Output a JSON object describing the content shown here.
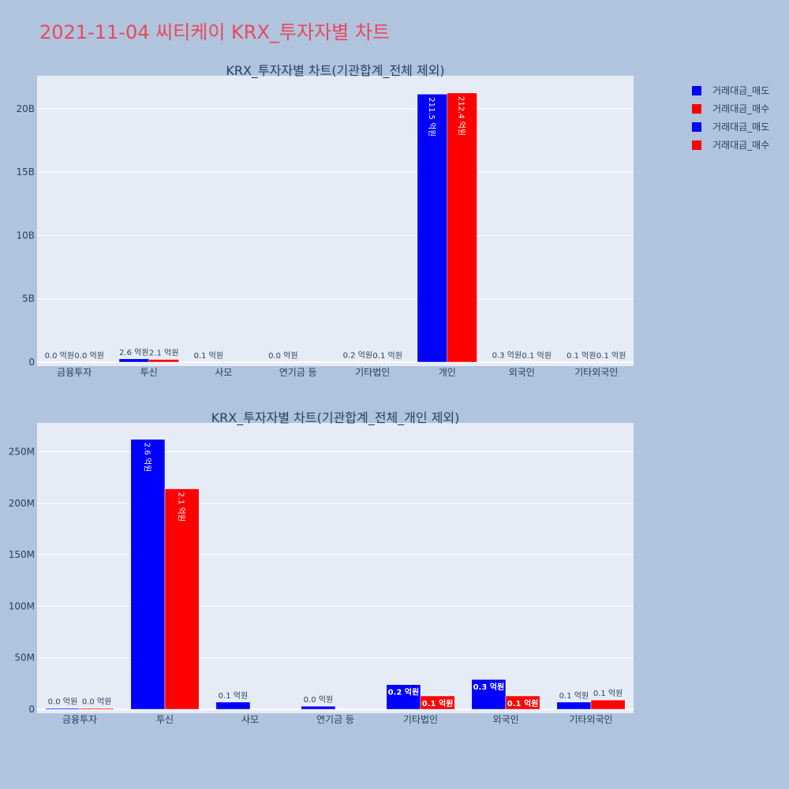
{
  "page": {
    "title": "2021-11-04 씨티케이 KRX_투자자별 차트",
    "title_color": "#e8495b",
    "background": "#b0c4de",
    "plot_background": "#e5ecf6",
    "text_color": "#2a3f5f"
  },
  "legend": {
    "items": [
      {
        "label": "거래대금_매도",
        "color": "#0000ff"
      },
      {
        "label": "거래대금_매수",
        "color": "#ff0000"
      },
      {
        "label": "거래대금_매도",
        "color": "#0000ff"
      },
      {
        "label": "거래대금_매수",
        "color": "#ff0000"
      }
    ],
    "placement": "top-right"
  },
  "chart_data": [
    {
      "type": "bar",
      "title": "KRX_투자자별 차트(기관합계_전체 제외)",
      "categories": [
        "금융투자",
        "투신",
        "사모",
        "연기금 등",
        "기타법인",
        "개인",
        "외국인",
        "기타외국인"
      ],
      "series": [
        {
          "name": "거래대금_매도",
          "color": "#0000ff",
          "values": [
            1000000,
            262000000,
            7000000,
            3000000,
            24000000,
            21150000000,
            29000000,
            7000000
          ],
          "labels": [
            "0.0 억원",
            "2.6 억원",
            "0.1 억원",
            "0.0 억원",
            "0.2 억원",
            "211.5 억원",
            "0.3 억원",
            "0.1 억원"
          ]
        },
        {
          "name": "거래대금_매수",
          "color": "#ff0000",
          "values": [
            1000000,
            214000000,
            0,
            0,
            13000000,
            21240000000,
            13000000,
            9000000
          ],
          "labels": [
            "0.0 억원",
            "2.1 억원",
            "",
            "",
            "0.1 억원",
            "212.4 억원",
            "0.1 억원",
            "0.1 억원"
          ]
        }
      ],
      "ylim": [
        0,
        22600000000
      ],
      "yticks": [
        {
          "value": 0,
          "label": "0"
        },
        {
          "value": 5000000000,
          "label": "5B"
        },
        {
          "value": 10000000000,
          "label": "10B"
        },
        {
          "value": 15000000000,
          "label": "15B"
        },
        {
          "value": 20000000000,
          "label": "20B"
        }
      ],
      "grid": true
    },
    {
      "type": "bar",
      "title": "KRX_투자자별 차트(기관합계_전체_개인 제외)",
      "categories": [
        "금융투자",
        "투신",
        "사모",
        "연기금 등",
        "기타법인",
        "외국인",
        "기타외국인"
      ],
      "series": [
        {
          "name": "거래대금_매도",
          "color": "#0000ff",
          "values": [
            1000000,
            262000000,
            7000000,
            3000000,
            24000000,
            29000000,
            7000000
          ],
          "labels": [
            "0.0 억원",
            "2.6 억원",
            "0.1 억원",
            "0.0 억원",
            "0.2 억원",
            "0.3 억원",
            "0.1 억원"
          ]
        },
        {
          "name": "거래대금_매수",
          "color": "#ff0000",
          "values": [
            1000000,
            214000000,
            0,
            0,
            13000000,
            13000000,
            9000000
          ],
          "labels": [
            "0.0 억원",
            "2.1 억원",
            "",
            "",
            "0.1 억원",
            "0.1 억원",
            "0.1 억원"
          ]
        }
      ],
      "ylim": [
        0,
        278000000
      ],
      "yticks": [
        {
          "value": 0,
          "label": "0"
        },
        {
          "value": 50000000,
          "label": "50M"
        },
        {
          "value": 100000000,
          "label": "100M"
        },
        {
          "value": 150000000,
          "label": "150M"
        },
        {
          "value": 200000000,
          "label": "200M"
        },
        {
          "value": 250000000,
          "label": "250M"
        }
      ],
      "grid": true
    }
  ]
}
